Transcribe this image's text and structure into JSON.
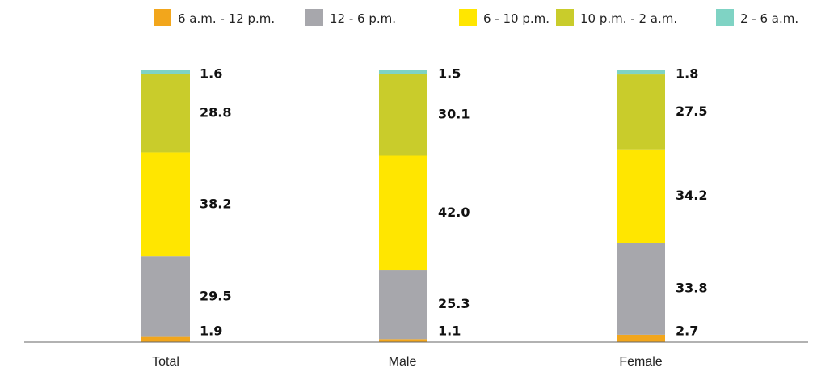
{
  "chart_data": {
    "type": "bar",
    "stacked": true,
    "categories": [
      "Total",
      "Male",
      "Female"
    ],
    "series": [
      {
        "name": "6 a.m. - 12 p.m.",
        "color": "#F2A61C",
        "values": [
          1.9,
          1.1,
          2.7
        ]
      },
      {
        "name": "12 - 6 p.m.",
        "color": "#A7A7AC",
        "values": [
          29.5,
          25.3,
          33.8
        ]
      },
      {
        "name": "6 - 10 p.m.",
        "color": "#FFE600",
        "values": [
          38.2,
          42.0,
          34.2
        ]
      },
      {
        "name": "10 p.m. - 2 a.m.",
        "color": "#C9CC2B",
        "values": [
          28.8,
          30.1,
          27.5
        ]
      },
      {
        "name": "2 - 6 a.m.",
        "color": "#7FD3C4",
        "values": [
          1.6,
          1.5,
          1.8
        ]
      }
    ],
    "title": "",
    "xlabel": "",
    "ylabel": "",
    "ylim": [
      0,
      100
    ],
    "grid": false,
    "legend": "top-right"
  }
}
